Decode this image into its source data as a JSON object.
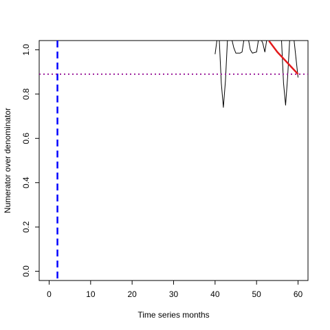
{
  "chart_data": {
    "type": "line",
    "title": "",
    "xlabel": "Time series months",
    "ylabel": "Numerator over denominator",
    "xlim": [
      -2.4,
      62.4
    ],
    "ylim": [
      -0.04167,
      1.04167
    ],
    "x_ticks": [
      0,
      10,
      20,
      30,
      40,
      50,
      60
    ],
    "y_ticks": [
      0.0,
      0.2,
      0.4,
      0.6,
      0.8,
      1.0
    ],
    "y_tick_labels": [
      "0.0",
      "0.2",
      "0.4",
      "0.6",
      "0.8",
      "1.0"
    ],
    "grid": false,
    "series": [
      {
        "role": "observed",
        "color": "#000000",
        "points": [
          [
            40,
            0.98
          ],
          [
            40.5,
            1.05
          ],
          [
            41,
            1.05
          ],
          [
            41.5,
            0.85
          ],
          [
            42,
            0.74
          ],
          [
            42.5,
            0.86
          ],
          [
            43,
            1.05
          ],
          [
            44,
            1.05
          ],
          [
            44.5,
            1.01
          ],
          [
            45,
            0.985
          ],
          [
            46,
            0.985
          ],
          [
            46.5,
            0.99
          ],
          [
            47,
            1.05
          ],
          [
            48,
            1.05
          ],
          [
            48.5,
            1.0
          ],
          [
            49,
            0.985
          ],
          [
            50,
            0.99
          ],
          [
            50.5,
            1.05
          ],
          [
            51,
            1.05
          ],
          [
            51.5,
            1.03
          ],
          [
            52,
            0.99
          ],
          [
            52.5,
            1.05
          ],
          [
            53,
            1.05
          ],
          [
            56,
            1.05
          ],
          [
            56.5,
            0.85
          ],
          [
            57,
            0.75
          ],
          [
            57.5,
            0.88
          ],
          [
            58,
            1.05
          ],
          [
            59,
            1.05
          ],
          [
            60,
            0.875
          ]
        ]
      },
      {
        "role": "trend",
        "color": "#e31a1c",
        "points": [
          [
            53,
            1.04
          ],
          [
            55,
            0.99
          ],
          [
            57,
            0.95
          ],
          [
            60,
            0.89
          ]
        ]
      }
    ],
    "reference_lines": [
      {
        "orientation": "vertical",
        "value": 2,
        "color": "#0000ff",
        "style": "dashed"
      },
      {
        "orientation": "horizontal",
        "value": 0.89,
        "color": "#9b1b9b",
        "style": "dotted"
      }
    ]
  }
}
